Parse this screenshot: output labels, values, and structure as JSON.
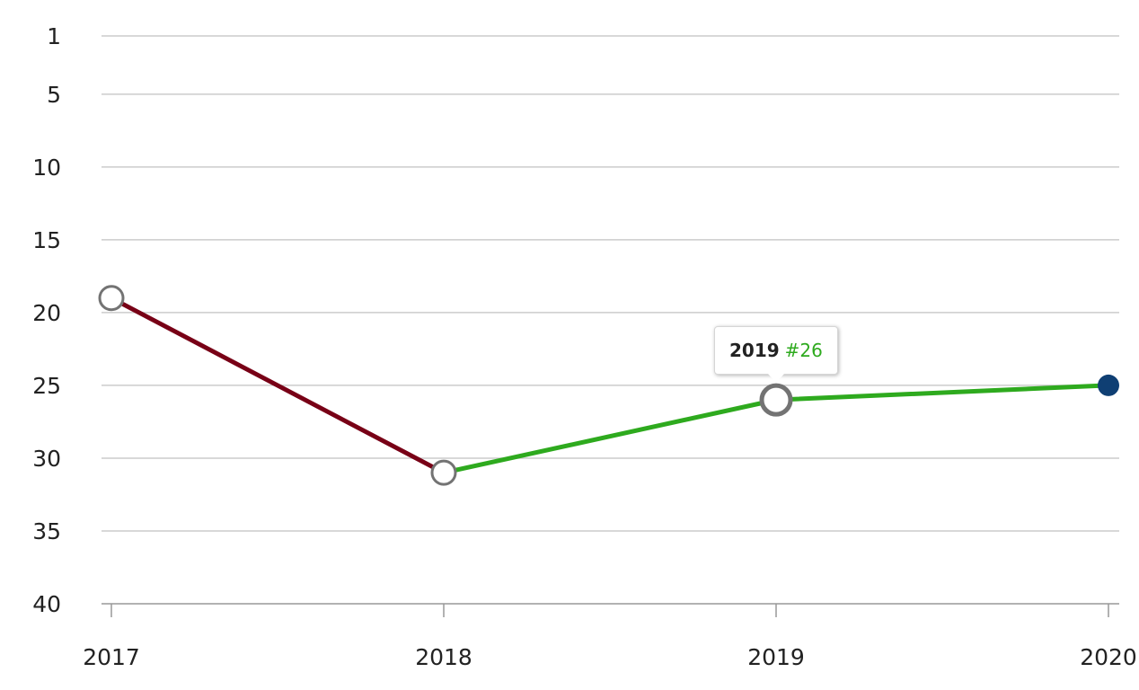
{
  "chart_data": {
    "type": "line",
    "title": "",
    "xlabel": "",
    "ylabel": "",
    "x": [
      "2017",
      "2018",
      "2019",
      "2020"
    ],
    "y": [
      19,
      31,
      26,
      25
    ],
    "y_axis": {
      "reversed": true,
      "range": [
        1,
        40
      ],
      "ticks": [
        1,
        5,
        10,
        15,
        20,
        25,
        30,
        35,
        40
      ]
    },
    "grid": true,
    "segment_colors": [
      "#780016",
      "#2eaa1e",
      "#2eaa1e"
    ],
    "last_point_color": "#0f3f73",
    "tooltip": {
      "year": "2019",
      "rank": "#26"
    }
  },
  "colors": {
    "decline": "#780016",
    "improve": "#2eaa1e",
    "current": "#0f3f73",
    "marker_stroke": "#737373"
  }
}
